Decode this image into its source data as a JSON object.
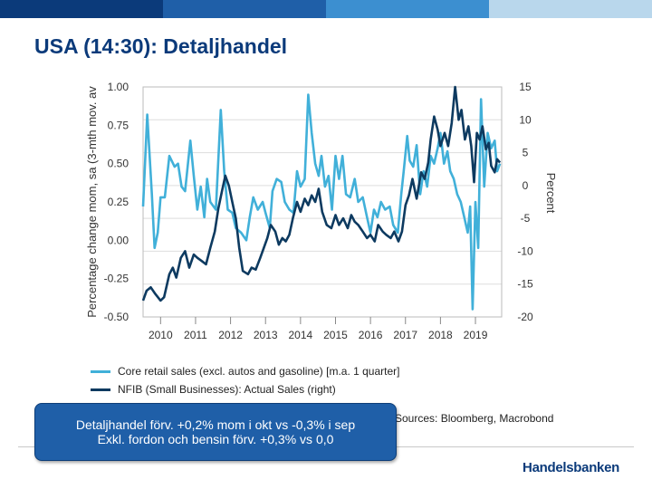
{
  "page": {
    "title": "USA (14:30): Detaljhandel"
  },
  "brand": {
    "name": "Handelsbanken"
  },
  "colors": {
    "bar1": "#0b3a7a",
    "bar2": "#1f5fa8",
    "bar3": "#3c8fd0",
    "bar4": "#6fb3e0",
    "bar5": "#b9d7ec",
    "core": "#41b0d9",
    "nfib": "#0d3a60",
    "grid": "#dddddd"
  },
  "callout": {
    "line1": "Detaljhandel förv. +0,2% mom i okt vs -0,3% i sep",
    "line2": "Exkl. fordon och bensin förv. +0,3% vs 0,0"
  },
  "sources": "Sources: Bloomberg, Macrobond",
  "chart_data": {
    "type": "line",
    "x_ticks": [
      "2010",
      "2011",
      "2012",
      "2013",
      "2014",
      "2015",
      "2016",
      "2017",
      "2018",
      "2019"
    ],
    "x_range": [
      2009.5,
      2019.75
    ],
    "left_axis": {
      "label": "Percentage change mom, sa (3-mth mov. av",
      "range": [
        -0.5,
        1.0
      ],
      "ticks": [
        "1.00",
        "0.75",
        "0.50",
        "0.25",
        "0.00",
        "-0.25",
        "-0.50"
      ]
    },
    "right_axis": {
      "label": "Percent",
      "range": [
        -20,
        15
      ],
      "ticks": [
        "15",
        "10",
        "5",
        "0",
        "-5",
        "-10",
        "-15",
        "-20"
      ]
    },
    "series": [
      {
        "name": "Core retail sales (excl. autos and gasoline) [m.a. 1 quarter]",
        "axis": "left",
        "points": [
          [
            2009.5,
            0.22
          ],
          [
            2009.62,
            0.82
          ],
          [
            2009.75,
            0.3
          ],
          [
            2009.83,
            -0.05
          ],
          [
            2009.92,
            0.05
          ],
          [
            2010.0,
            0.28
          ],
          [
            2010.12,
            0.28
          ],
          [
            2010.25,
            0.55
          ],
          [
            2010.4,
            0.48
          ],
          [
            2010.5,
            0.5
          ],
          [
            2010.6,
            0.35
          ],
          [
            2010.7,
            0.32
          ],
          [
            2010.85,
            0.65
          ],
          [
            2010.95,
            0.42
          ],
          [
            2011.05,
            0.2
          ],
          [
            2011.15,
            0.35
          ],
          [
            2011.25,
            0.15
          ],
          [
            2011.33,
            0.4
          ],
          [
            2011.42,
            0.25
          ],
          [
            2011.58,
            0.2
          ],
          [
            2011.72,
            0.85
          ],
          [
            2011.82,
            0.45
          ],
          [
            2011.92,
            0.2
          ],
          [
            2012.05,
            0.18
          ],
          [
            2012.15,
            0.08
          ],
          [
            2012.3,
            0.05
          ],
          [
            2012.45,
            0.0
          ],
          [
            2012.55,
            0.15
          ],
          [
            2012.65,
            0.28
          ],
          [
            2012.78,
            0.2
          ],
          [
            2012.92,
            0.25
          ],
          [
            2013.0,
            0.18
          ],
          [
            2013.12,
            0.08
          ],
          [
            2013.2,
            0.32
          ],
          [
            2013.32,
            0.4
          ],
          [
            2013.45,
            0.38
          ],
          [
            2013.55,
            0.25
          ],
          [
            2013.68,
            0.2
          ],
          [
            2013.8,
            0.18
          ],
          [
            2013.9,
            0.45
          ],
          [
            2014.0,
            0.35
          ],
          [
            2014.12,
            0.4
          ],
          [
            2014.22,
            0.95
          ],
          [
            2014.32,
            0.7
          ],
          [
            2014.42,
            0.5
          ],
          [
            2014.52,
            0.42
          ],
          [
            2014.6,
            0.55
          ],
          [
            2014.7,
            0.35
          ],
          [
            2014.8,
            0.42
          ],
          [
            2014.9,
            0.2
          ],
          [
            2015.0,
            0.55
          ],
          [
            2015.1,
            0.4
          ],
          [
            2015.2,
            0.55
          ],
          [
            2015.3,
            0.3
          ],
          [
            2015.42,
            0.28
          ],
          [
            2015.55,
            0.4
          ],
          [
            2015.65,
            0.25
          ],
          [
            2015.78,
            0.28
          ],
          [
            2015.9,
            0.15
          ],
          [
            2016.0,
            0.05
          ],
          [
            2016.1,
            0.2
          ],
          [
            2016.2,
            0.15
          ],
          [
            2016.3,
            0.25
          ],
          [
            2016.42,
            0.2
          ],
          [
            2016.55,
            0.22
          ],
          [
            2016.65,
            0.1
          ],
          [
            2016.78,
            0.05
          ],
          [
            2016.88,
            0.3
          ],
          [
            2016.95,
            0.45
          ],
          [
            2017.05,
            0.68
          ],
          [
            2017.12,
            0.52
          ],
          [
            2017.22,
            0.48
          ],
          [
            2017.32,
            0.62
          ],
          [
            2017.42,
            0.3
          ],
          [
            2017.52,
            0.45
          ],
          [
            2017.62,
            0.35
          ],
          [
            2017.72,
            0.55
          ],
          [
            2017.82,
            0.5
          ],
          [
            2017.92,
            0.6
          ],
          [
            2018.0,
            0.7
          ],
          [
            2018.1,
            0.5
          ],
          [
            2018.2,
            0.58
          ],
          [
            2018.28,
            0.45
          ],
          [
            2018.38,
            0.4
          ],
          [
            2018.48,
            0.3
          ],
          [
            2018.58,
            0.25
          ],
          [
            2018.68,
            0.15
          ],
          [
            2018.78,
            0.05
          ],
          [
            2018.85,
            0.22
          ],
          [
            2018.92,
            -0.45
          ],
          [
            2019.0,
            0.25
          ],
          [
            2019.08,
            -0.05
          ],
          [
            2019.16,
            0.92
          ],
          [
            2019.25,
            0.35
          ],
          [
            2019.35,
            0.7
          ],
          [
            2019.45,
            0.6
          ],
          [
            2019.55,
            0.65
          ],
          [
            2019.62,
            0.45
          ],
          [
            2019.7,
            0.5
          ]
        ]
      },
      {
        "name": "NFIB (Small Businesses): Actual Sales (right)",
        "axis": "right",
        "points": [
          [
            2009.5,
            -17.5
          ],
          [
            2009.6,
            -16.0
          ],
          [
            2009.72,
            -15.5
          ],
          [
            2009.85,
            -16.5
          ],
          [
            2010.0,
            -17.5
          ],
          [
            2010.1,
            -17.0
          ],
          [
            2010.25,
            -13.5
          ],
          [
            2010.35,
            -12.5
          ],
          [
            2010.45,
            -14.0
          ],
          [
            2010.58,
            -11.0
          ],
          [
            2010.7,
            -10.0
          ],
          [
            2010.82,
            -12.5
          ],
          [
            2010.95,
            -10.5
          ],
          [
            2011.05,
            -11.0
          ],
          [
            2011.18,
            -11.5
          ],
          [
            2011.3,
            -12.0
          ],
          [
            2011.42,
            -9.5
          ],
          [
            2011.55,
            -7.0
          ],
          [
            2011.65,
            -3.5
          ],
          [
            2011.75,
            -1.0
          ],
          [
            2011.85,
            1.5
          ],
          [
            2011.95,
            0.0
          ],
          [
            2012.05,
            -2.5
          ],
          [
            2012.15,
            -5.0
          ],
          [
            2012.25,
            -9.5
          ],
          [
            2012.35,
            -13.0
          ],
          [
            2012.5,
            -13.5
          ],
          [
            2012.6,
            -12.5
          ],
          [
            2012.72,
            -12.8
          ],
          [
            2012.85,
            -11.0
          ],
          [
            2012.95,
            -9.5
          ],
          [
            2013.05,
            -8.0
          ],
          [
            2013.15,
            -6.0
          ],
          [
            2013.28,
            -7.0
          ],
          [
            2013.38,
            -9.0
          ],
          [
            2013.48,
            -8.0
          ],
          [
            2013.58,
            -8.5
          ],
          [
            2013.68,
            -7.5
          ],
          [
            2013.78,
            -5.0
          ],
          [
            2013.9,
            -2.5
          ],
          [
            2014.0,
            -4.0
          ],
          [
            2014.12,
            -2.0
          ],
          [
            2014.22,
            -3.0
          ],
          [
            2014.32,
            -1.5
          ],
          [
            2014.42,
            -2.5
          ],
          [
            2014.52,
            -0.5
          ],
          [
            2014.62,
            -4.0
          ],
          [
            2014.75,
            -6.0
          ],
          [
            2014.88,
            -6.5
          ],
          [
            2015.0,
            -4.5
          ],
          [
            2015.1,
            -6.0
          ],
          [
            2015.22,
            -5.0
          ],
          [
            2015.35,
            -6.5
          ],
          [
            2015.45,
            -4.5
          ],
          [
            2015.55,
            -5.5
          ],
          [
            2015.65,
            -6.0
          ],
          [
            2015.78,
            -7.0
          ],
          [
            2015.9,
            -8.0
          ],
          [
            2016.0,
            -7.5
          ],
          [
            2016.12,
            -8.5
          ],
          [
            2016.22,
            -6.0
          ],
          [
            2016.35,
            -7.0
          ],
          [
            2016.45,
            -7.5
          ],
          [
            2016.58,
            -8.0
          ],
          [
            2016.68,
            -7.0
          ],
          [
            2016.8,
            -8.5
          ],
          [
            2016.9,
            -7.0
          ],
          [
            2017.0,
            -3.0
          ],
          [
            2017.1,
            -1.5
          ],
          [
            2017.2,
            1.0
          ],
          [
            2017.32,
            -2.0
          ],
          [
            2017.45,
            2.0
          ],
          [
            2017.55,
            1.0
          ],
          [
            2017.65,
            3.5
          ],
          [
            2017.72,
            7.0
          ],
          [
            2017.82,
            10.5
          ],
          [
            2017.92,
            8.5
          ],
          [
            2018.0,
            6.0
          ],
          [
            2018.12,
            8.0
          ],
          [
            2018.22,
            6.0
          ],
          [
            2018.32,
            9.5
          ],
          [
            2018.42,
            15.0
          ],
          [
            2018.52,
            10.0
          ],
          [
            2018.6,
            11.5
          ],
          [
            2018.7,
            7.0
          ],
          [
            2018.8,
            9.0
          ],
          [
            2018.88,
            6.0
          ],
          [
            2018.96,
            0.5
          ],
          [
            2019.04,
            8.0
          ],
          [
            2019.12,
            7.0
          ],
          [
            2019.2,
            9.0
          ],
          [
            2019.3,
            5.5
          ],
          [
            2019.38,
            6.5
          ],
          [
            2019.45,
            3.0
          ],
          [
            2019.55,
            2.0
          ],
          [
            2019.62,
            4.0
          ],
          [
            2019.7,
            3.5
          ]
        ]
      }
    ]
  }
}
